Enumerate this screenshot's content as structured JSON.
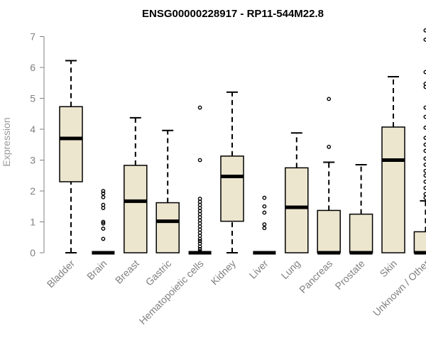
{
  "chart_data": {
    "type": "box",
    "title": "ENSG00000228917 - RP11-544M22.8",
    "xlabel": "",
    "ylabel": "Expression",
    "ylim": [
      0,
      7.3
    ],
    "yticks": [
      0,
      1,
      2,
      3,
      4,
      5,
      6,
      7
    ],
    "grid": false,
    "legend": "none",
    "box_fill": "#ede6cf",
    "categories": [
      "Bladder",
      "Brain",
      "Breast",
      "Gastric",
      "Hematopoietic cells",
      "Kidney",
      "Liver",
      "Lung",
      "Pancreas",
      "Prostate",
      "Skin",
      "Unknown / Other"
    ],
    "boxes": [
      {
        "category": "Bladder",
        "whisker_low": 0,
        "q1": 2.3,
        "median": 3.7,
        "q3": 4.73,
        "whisker_high": 6.22,
        "outliers": []
      },
      {
        "category": "Brain",
        "whisker_low": 0,
        "q1": 0,
        "median": 0,
        "q3": 0,
        "whisker_high": 0,
        "outliers": [
          0.45,
          0.78,
          0.95,
          1.0,
          1.45,
          1.55,
          1.8,
          1.92,
          2.0
        ]
      },
      {
        "category": "Breast",
        "whisker_low": 0,
        "q1": 0,
        "median": 1.67,
        "q3": 2.83,
        "whisker_high": 4.37,
        "outliers": []
      },
      {
        "category": "Gastric",
        "whisker_low": 0,
        "q1": 0,
        "median": 1.02,
        "q3": 1.62,
        "whisker_high": 3.96,
        "outliers": []
      },
      {
        "category": "Hematopoietic cells",
        "whisker_low": 0,
        "q1": 0,
        "median": 0,
        "q3": 0,
        "whisker_high": 0,
        "outliers": [
          0.05,
          0.12,
          0.2,
          0.3,
          0.38,
          0.45,
          0.55,
          0.65,
          0.75,
          0.85,
          0.95,
          1.05,
          1.15,
          1.25,
          1.35,
          1.45,
          1.55,
          1.65,
          1.75,
          3.0,
          4.7
        ]
      },
      {
        "category": "Kidney",
        "whisker_low": 0,
        "q1": 1.02,
        "median": 2.47,
        "q3": 3.13,
        "whisker_high": 5.2,
        "outliers": []
      },
      {
        "category": "Liver",
        "whisker_low": 0,
        "q1": 0,
        "median": 0,
        "q3": 0,
        "whisker_high": 0,
        "outliers": [
          0.8,
          0.92,
          1.3,
          1.5,
          1.78
        ]
      },
      {
        "category": "Lung",
        "whisker_low": 0,
        "q1": 0,
        "median": 1.47,
        "q3": 2.75,
        "whisker_high": 3.88,
        "outliers": []
      },
      {
        "category": "Pancreas",
        "whisker_low": 0,
        "q1": 0,
        "median": 0,
        "q3": 1.37,
        "whisker_high": 2.93,
        "outliers": [
          3.43,
          4.98
        ]
      },
      {
        "category": "Prostate",
        "whisker_low": 0,
        "q1": 0,
        "median": 0,
        "q3": 1.25,
        "whisker_high": 2.85,
        "outliers": []
      },
      {
        "category": "Skin",
        "whisker_low": 0,
        "q1": 0,
        "median": 3.0,
        "q3": 4.07,
        "whisker_high": 5.7,
        "outliers": []
      },
      {
        "category": "Unknown / Other",
        "whisker_low": 0,
        "q1": 0,
        "median": 0,
        "q3": 0.68,
        "whisker_high": 1.68,
        "outliers": [
          1.78,
          1.9,
          2.1,
          2.3,
          2.5,
          2.65,
          2.85,
          3.05,
          3.3,
          3.5,
          3.72,
          4.05,
          4.4,
          4.7,
          5.37,
          5.47,
          5.85,
          6.9,
          7.2
        ]
      }
    ]
  }
}
